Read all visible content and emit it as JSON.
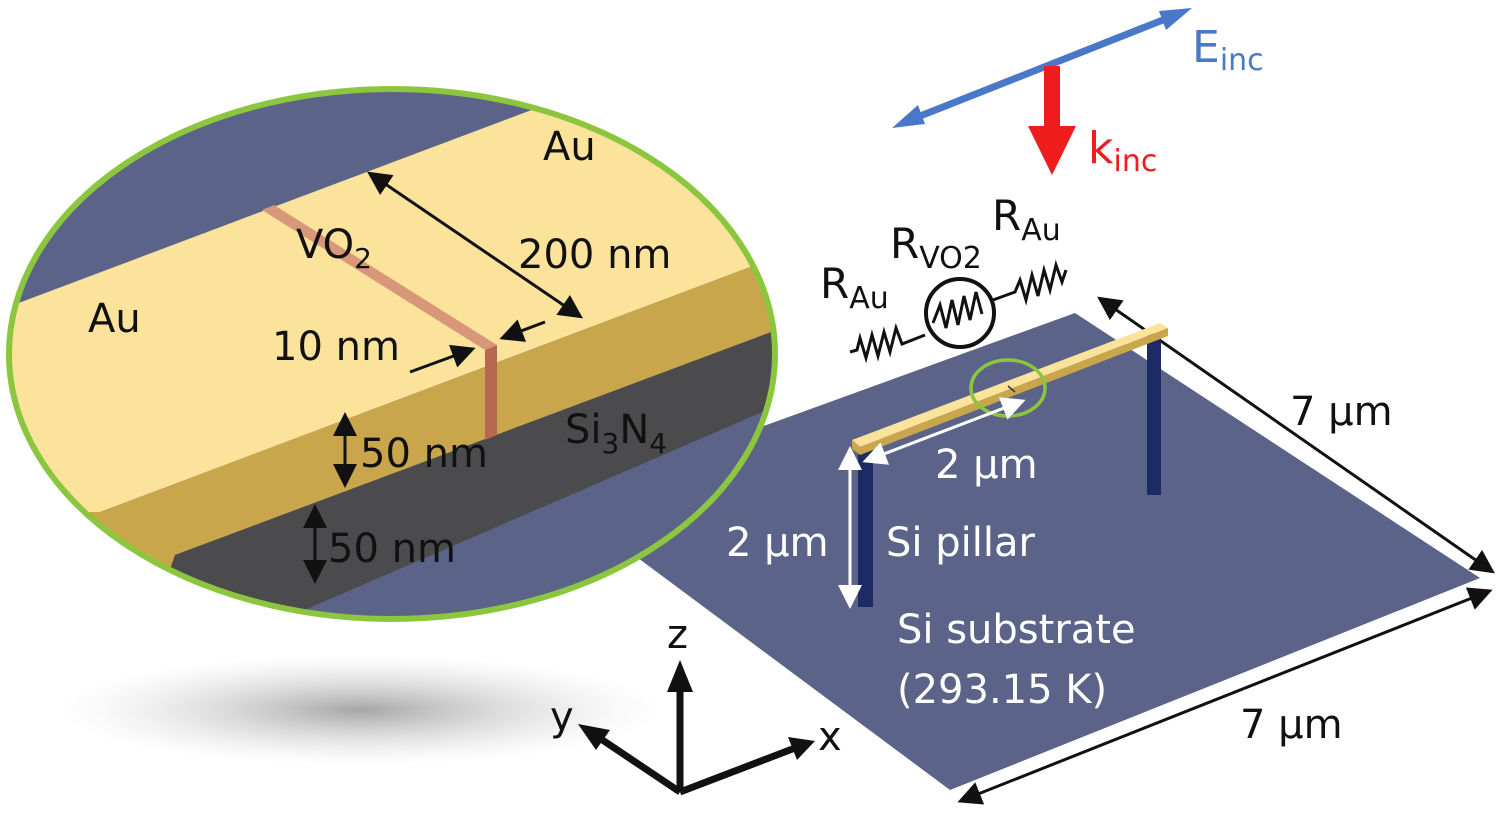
{
  "colors": {
    "substrate": "#5b6389",
    "au_top": "#fbe39c",
    "au_side": "#c9a64c",
    "si3n4": "#4b4b4d",
    "vo2": "#d9977a",
    "inset_border": "#8cc63f",
    "e_field": "#4a78c8",
    "k_vector": "#ee1c1c",
    "pillar": "#1c2a66"
  },
  "inset": {
    "au_left": "Au",
    "au_right": "Au",
    "vo2": {
      "base": "VO",
      "sub": "2"
    },
    "width": "200 nm",
    "gap": "10 nm",
    "au_thickness": "50 nm",
    "si3n4": {
      "a": "Si",
      "sub1": "3",
      "b": "N",
      "sub2": "4"
    },
    "si3n4_thickness": "50 nm"
  },
  "beam": {
    "e_inc": {
      "base": "E",
      "sub": "inc"
    },
    "k_inc": {
      "base": "k",
      "sub": "inc"
    }
  },
  "circuit": {
    "r_au_left": {
      "base": "R",
      "sub": "Au"
    },
    "r_vo2": {
      "base": "R",
      "sub": "VO2"
    },
    "r_au_right": {
      "base": "R",
      "sub": "Au"
    }
  },
  "device": {
    "bridge_length": "2 µm",
    "pillar_height": "2 µm",
    "pillar_label": "Si pillar",
    "substrate_label": "Si substrate",
    "substrate_temp": "(293.15 K)",
    "substrate_side_y": "7 µm",
    "substrate_side_x": "7 µm"
  },
  "axes": {
    "z": "z",
    "y": "y",
    "x": "x"
  }
}
